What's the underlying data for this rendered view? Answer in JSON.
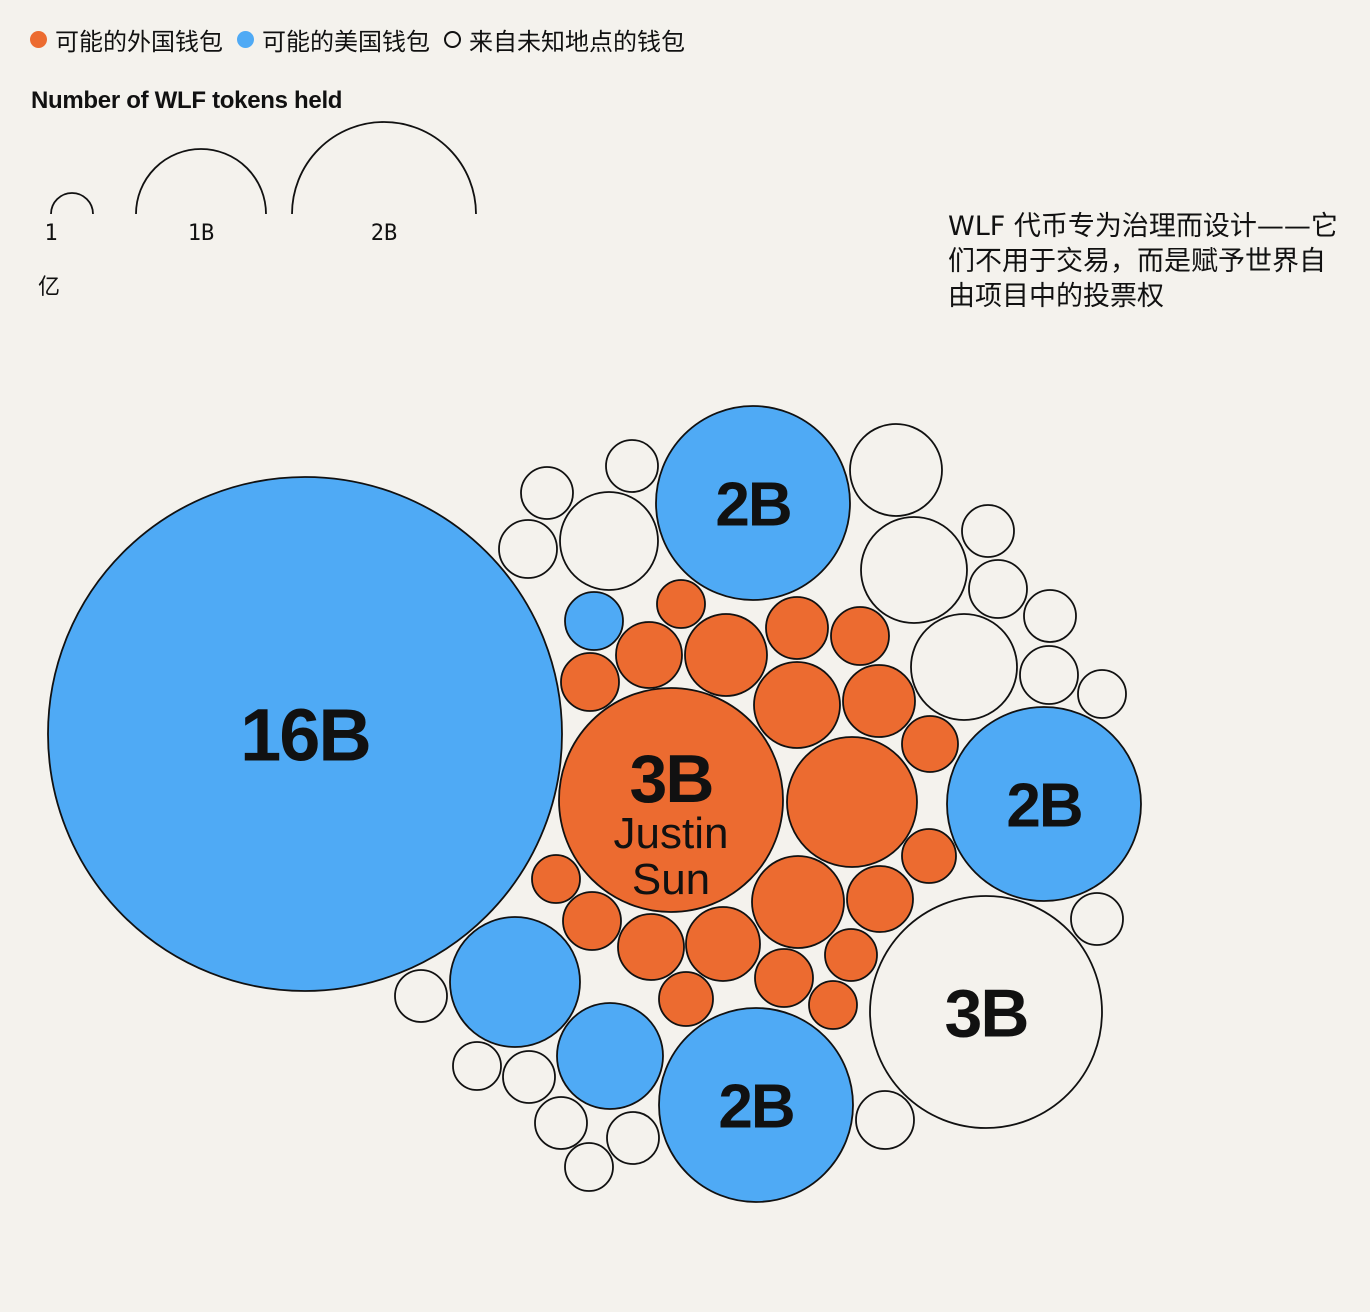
{
  "legend": {
    "items": [
      {
        "label": "可能的外国钱包",
        "color": "#ec6b30",
        "outline": false
      },
      {
        "label": "可能的美国钱包",
        "color": "#4faaf5",
        "outline": false
      },
      {
        "label": "来自未知地点的钱包",
        "color": "#f4f2ed",
        "outline": true
      }
    ]
  },
  "size_key": {
    "title": "Number of WLF tokens held",
    "entries": [
      {
        "label": "1",
        "unit": "亿",
        "value": 100000000
      },
      {
        "label": "1B",
        "value": 1000000000
      },
      {
        "label": "2B",
        "value": 2000000000
      }
    ]
  },
  "note": "WLF 代币专为治理而设计——它们不用于交易，而是赋予世界自由项目中的投票权",
  "colors": {
    "foreign": "#ec6b30",
    "us": "#4faaf5",
    "unknown": "#f4f2ed",
    "stroke": "#111111",
    "background": "#f4f2ed"
  },
  "chart_data": {
    "type": "packed-bubble",
    "title": "",
    "legend_placement": "top-left",
    "labels": [
      {
        "category": "us",
        "value": 16000000000,
        "label": "16B"
      },
      {
        "category": "foreign",
        "value": 3000000000,
        "label": "3B",
        "name": [
          "Justin",
          "Sun"
        ]
      },
      {
        "category": "unknown",
        "value": 3000000000,
        "label": "3B"
      },
      {
        "category": "us",
        "value": 2000000000,
        "label": "2B"
      },
      {
        "category": "us",
        "value": 2000000000,
        "label": "2B"
      },
      {
        "category": "us",
        "value": 2000000000,
        "label": "2B"
      }
    ],
    "labeled": [
      {
        "category": "us",
        "value": 16000000000,
        "label": "16B"
      },
      {
        "category": "foreign",
        "value": 3000000000,
        "label": "3B",
        "name": [
          "Justin",
          "Sun"
        ]
      },
      {
        "category": "unknown",
        "value": 3000000000,
        "label": "3B"
      },
      {
        "category": "us",
        "value": 2000000000,
        "label": "2B"
      },
      {
        "category": "us",
        "value": 2000000000,
        "label": "2B"
      },
      {
        "category": "us",
        "value": 2000000000,
        "label": "2B"
      }
    ]
  }
}
